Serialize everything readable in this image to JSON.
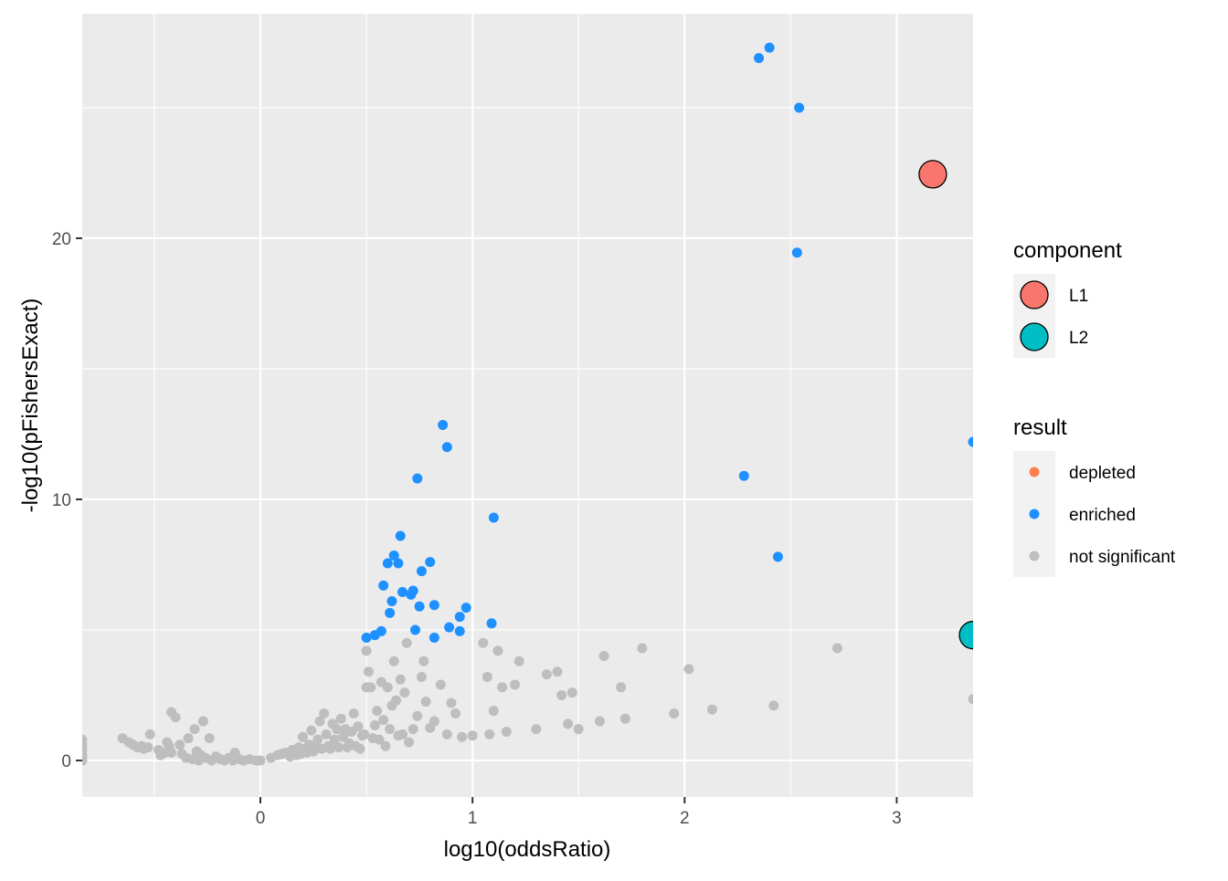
{
  "chart_data": {
    "type": "scatter",
    "xlabel": "log10(oddsRatio)",
    "ylabel": "-log10(pFishersExact)",
    "xlim": [
      -0.84,
      3.36
    ],
    "ylim": [
      -1.4,
      28.6
    ],
    "x_ticks": [
      0,
      1,
      2,
      3
    ],
    "y_ticks": [
      0,
      10,
      20
    ],
    "x_tick_labels": [
      "0",
      "1",
      "2",
      "3"
    ],
    "y_tick_labels": [
      "0",
      "10",
      "20"
    ],
    "grid": true,
    "background": "#EBEBEB",
    "legend_position": "right",
    "legends": [
      {
        "title": "component",
        "entries": [
          {
            "label": "L1",
            "color": "#F8766D"
          },
          {
            "label": "L2",
            "color": "#00BFC4"
          }
        ]
      },
      {
        "title": "result",
        "entries": [
          {
            "label": "depleted",
            "color": "#FF7F50"
          },
          {
            "label": "enriched",
            "color": "#1E90FF"
          },
          {
            "label": "not significant",
            "color": "#BEBEBE"
          }
        ]
      }
    ],
    "series": [
      {
        "name": "not significant",
        "color": "#BEBEBE",
        "points": [
          [
            -0.84,
            0.8
          ],
          [
            -0.84,
            0.6
          ],
          [
            -0.84,
            0.4
          ],
          [
            -0.84,
            0.2
          ],
          [
            -0.84,
            0.1
          ],
          [
            -0.84,
            0.0
          ],
          [
            -0.65,
            0.85
          ],
          [
            -0.62,
            0.7
          ],
          [
            -0.6,
            0.6
          ],
          [
            -0.58,
            0.5
          ],
          [
            -0.56,
            0.55
          ],
          [
            -0.55,
            0.45
          ],
          [
            -0.53,
            0.5
          ],
          [
            -0.52,
            1.0
          ],
          [
            -0.48,
            0.4
          ],
          [
            -0.47,
            0.2
          ],
          [
            -0.45,
            0.3
          ],
          [
            -0.44,
            0.7
          ],
          [
            -0.43,
            0.55
          ],
          [
            -0.42,
            0.3
          ],
          [
            -0.42,
            1.85
          ],
          [
            -0.4,
            1.65
          ],
          [
            -0.38,
            0.6
          ],
          [
            -0.37,
            0.25
          ],
          [
            -0.35,
            0.1
          ],
          [
            -0.34,
            0.85
          ],
          [
            -0.32,
            0.05
          ],
          [
            -0.31,
            1.2
          ],
          [
            -0.3,
            0.35
          ],
          [
            -0.29,
            0.0
          ],
          [
            -0.28,
            0.2
          ],
          [
            -0.27,
            1.5
          ],
          [
            -0.26,
            0.1
          ],
          [
            -0.24,
            0.85
          ],
          [
            -0.23,
            0.0
          ],
          [
            -0.21,
            0.15
          ],
          [
            -0.19,
            0.05
          ],
          [
            -0.17,
            0.0
          ],
          [
            -0.15,
            0.1
          ],
          [
            -0.13,
            0.0
          ],
          [
            -0.12,
            0.3
          ],
          [
            -0.1,
            0.05
          ],
          [
            -0.08,
            0.0
          ],
          [
            -0.05,
            0.05
          ],
          [
            -0.02,
            0.0
          ],
          [
            0.0,
            0.0
          ],
          [
            0.05,
            0.1
          ],
          [
            0.08,
            0.2
          ],
          [
            0.1,
            0.25
          ],
          [
            0.12,
            0.3
          ],
          [
            0.14,
            0.15
          ],
          [
            0.15,
            0.4
          ],
          [
            0.16,
            0.35
          ],
          [
            0.17,
            0.2
          ],
          [
            0.18,
            0.5
          ],
          [
            0.19,
            0.25
          ],
          [
            0.2,
            0.9
          ],
          [
            0.21,
            0.45
          ],
          [
            0.22,
            0.3
          ],
          [
            0.23,
            0.6
          ],
          [
            0.24,
            1.15
          ],
          [
            0.25,
            0.35
          ],
          [
            0.26,
            0.5
          ],
          [
            0.27,
            0.8
          ],
          [
            0.28,
            1.5
          ],
          [
            0.29,
            0.45
          ],
          [
            0.3,
            1.8
          ],
          [
            0.31,
            1.0
          ],
          [
            0.32,
            0.55
          ],
          [
            0.33,
            0.45
          ],
          [
            0.34,
            1.4
          ],
          [
            0.35,
            0.8
          ],
          [
            0.36,
            1.2
          ],
          [
            0.37,
            0.5
          ],
          [
            0.38,
            1.6
          ],
          [
            0.39,
            0.9
          ],
          [
            0.4,
            1.2
          ],
          [
            0.41,
            0.5
          ],
          [
            0.42,
            0.65
          ],
          [
            0.43,
            1.1
          ],
          [
            0.44,
            1.8
          ],
          [
            0.45,
            0.55
          ],
          [
            0.46,
            1.3
          ],
          [
            0.47,
            0.45
          ],
          [
            0.48,
            0.95
          ],
          [
            0.49,
            1.0
          ],
          [
            0.5,
            2.8
          ],
          [
            0.5,
            4.2
          ],
          [
            0.51,
            3.4
          ],
          [
            0.52,
            2.8
          ],
          [
            0.53,
            0.85
          ],
          [
            0.54,
            1.35
          ],
          [
            0.55,
            1.9
          ],
          [
            0.56,
            0.8
          ],
          [
            0.57,
            3.0
          ],
          [
            0.58,
            1.55
          ],
          [
            0.59,
            0.55
          ],
          [
            0.6,
            2.8
          ],
          [
            0.61,
            1.2
          ],
          [
            0.62,
            2.1
          ],
          [
            0.63,
            3.8
          ],
          [
            0.64,
            2.3
          ],
          [
            0.65,
            0.95
          ],
          [
            0.66,
            3.1
          ],
          [
            0.67,
            1.0
          ],
          [
            0.68,
            2.6
          ],
          [
            0.69,
            4.5
          ],
          [
            0.7,
            0.7
          ],
          [
            0.72,
            1.2
          ],
          [
            0.74,
            1.7
          ],
          [
            0.76,
            3.2
          ],
          [
            0.77,
            3.8
          ],
          [
            0.78,
            2.25
          ],
          [
            0.8,
            1.25
          ],
          [
            0.82,
            1.5
          ],
          [
            0.85,
            2.9
          ],
          [
            0.88,
            1.0
          ],
          [
            0.9,
            2.2
          ],
          [
            0.92,
            1.8
          ],
          [
            0.95,
            0.9
          ],
          [
            1.0,
            0.95
          ],
          [
            1.05,
            4.5
          ],
          [
            1.07,
            3.2
          ],
          [
            1.08,
            1.0
          ],
          [
            1.1,
            1.9
          ],
          [
            1.12,
            4.2
          ],
          [
            1.14,
            2.8
          ],
          [
            1.16,
            1.1
          ],
          [
            1.2,
            2.9
          ],
          [
            1.22,
            3.8
          ],
          [
            1.3,
            1.2
          ],
          [
            1.35,
            3.3
          ],
          [
            1.4,
            3.4
          ],
          [
            1.42,
            2.5
          ],
          [
            1.45,
            1.4
          ],
          [
            1.47,
            2.6
          ],
          [
            1.5,
            1.2
          ],
          [
            1.6,
            1.5
          ],
          [
            1.62,
            4.0
          ],
          [
            1.7,
            2.8
          ],
          [
            1.72,
            1.6
          ],
          [
            1.8,
            4.3
          ],
          [
            1.95,
            1.8
          ],
          [
            2.02,
            3.5
          ],
          [
            2.13,
            1.95
          ],
          [
            2.42,
            2.1
          ],
          [
            2.72,
            4.3
          ],
          [
            3.36,
            2.35
          ]
        ]
      },
      {
        "name": "enriched",
        "color": "#1E90FF",
        "points": [
          [
            0.5,
            4.7
          ],
          [
            0.54,
            4.8
          ],
          [
            0.57,
            4.95
          ],
          [
            0.58,
            6.7
          ],
          [
            0.6,
            7.55
          ],
          [
            0.61,
            5.65
          ],
          [
            0.62,
            6.1
          ],
          [
            0.63,
            7.85
          ],
          [
            0.65,
            7.55
          ],
          [
            0.66,
            8.6
          ],
          [
            0.67,
            6.45
          ],
          [
            0.71,
            6.35
          ],
          [
            0.72,
            6.5
          ],
          [
            0.73,
            5.0
          ],
          [
            0.74,
            10.8
          ],
          [
            0.75,
            5.9
          ],
          [
            0.76,
            7.25
          ],
          [
            0.8,
            7.6
          ],
          [
            0.82,
            5.95
          ],
          [
            0.82,
            4.7
          ],
          [
            0.86,
            12.85
          ],
          [
            0.88,
            12.0
          ],
          [
            0.89,
            5.1
          ],
          [
            0.94,
            5.5
          ],
          [
            0.94,
            4.95
          ],
          [
            0.97,
            5.85
          ],
          [
            1.09,
            5.25
          ],
          [
            1.1,
            9.3
          ],
          [
            2.28,
            10.9
          ],
          [
            2.35,
            26.9
          ],
          [
            2.4,
            27.3
          ],
          [
            2.44,
            7.8
          ],
          [
            2.53,
            19.45
          ],
          [
            2.54,
            25.0
          ],
          [
            3.36,
            12.2
          ]
        ]
      }
    ],
    "components": [
      {
        "name": "L1",
        "color": "#F8766D",
        "x": 3.17,
        "y": 22.45
      },
      {
        "name": "L2",
        "color": "#00BFC4",
        "x": 3.36,
        "y": 4.8
      }
    ]
  }
}
